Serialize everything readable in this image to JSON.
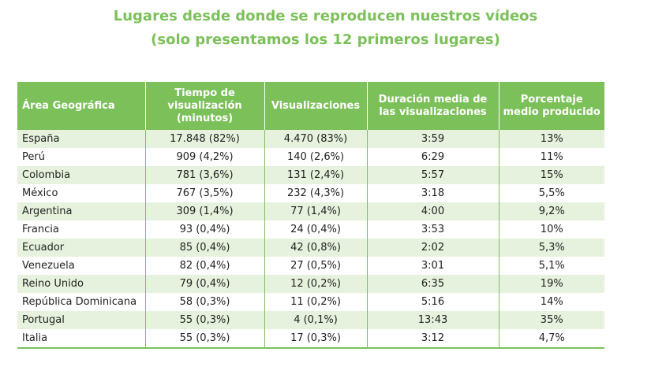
{
  "title": {
    "line1": "Lugares desde donde se reproducen nuestros vídeos",
    "line2": "(solo presentamos los 12 primeros lugares)"
  },
  "table": {
    "headers": [
      "Área Geográfica",
      "Tiempo de visualización (minutos)",
      "Visualizaciones",
      "Duración media de las visualizaciones",
      "Porcentaje medio producido"
    ],
    "rows": [
      [
        "España",
        "17.848 (82%)",
        "4.470 (83%)",
        "3:59",
        "13%"
      ],
      [
        "Perú",
        "909 (4,2%)",
        "140 (2,6%)",
        "6:29",
        "11%"
      ],
      [
        "Colombia",
        "781 (3,6%)",
        "131 (2,4%)",
        "5:57",
        "15%"
      ],
      [
        "México",
        "767 (3,5%)",
        "232 (4,3%)",
        "3:18",
        "5,5%"
      ],
      [
        "Argentina",
        "309 (1,4%)",
        "77 (1,4%)",
        "4:00",
        "9,2%"
      ],
      [
        "Francia",
        "93 (0,4%)",
        "24 (0,4%)",
        "3:53",
        "10%"
      ],
      [
        "Ecuador",
        "85 (0,4%)",
        "42 (0,8%)",
        "2:02",
        "5,3%"
      ],
      [
        "Venezuela",
        "82 (0,4%)",
        "27 (0,5%)",
        "3:01",
        "5,1%"
      ],
      [
        "Reino Unido",
        "79 (0,4%)",
        "12 (0,2%)",
        "6:35",
        "19%"
      ],
      [
        "República Dominicana",
        "58 (0,3%)",
        "11 (0,2%)",
        "5:16",
        "14%"
      ],
      [
        "Portugal",
        "55 (0,3%)",
        "4 (0,1%)",
        "13:43",
        "35%"
      ],
      [
        "Italia",
        "55 (0,3%)",
        "17 (0,3%)",
        "3:12",
        "4,7%"
      ]
    ]
  },
  "colors": {
    "accent": "#7cc05a",
    "row_stripe": "#e6f2dd"
  }
}
